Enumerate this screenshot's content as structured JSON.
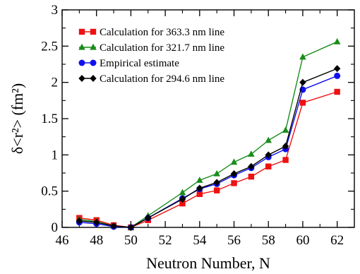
{
  "chart_data": {
    "type": "line",
    "xlabel": "Neutron Number, N",
    "ylabel": "δ<r²> (fm²)",
    "xlim": [
      46,
      63
    ],
    "ylim": [
      0,
      3
    ],
    "xticks": [
      46,
      48,
      50,
      52,
      54,
      56,
      58,
      60,
      62
    ],
    "yticks": [
      0,
      0.5,
      1,
      1.5,
      2,
      2.5,
      3
    ],
    "grid": false,
    "legend_position": "top-left",
    "series": [
      {
        "name": "Calculation for 363.3 nm line",
        "color": "#ee1111",
        "marker": "square",
        "x": [
          47,
          48,
          49,
          50,
          51,
          53,
          54,
          55,
          56,
          57,
          58,
          59,
          60,
          62
        ],
        "y": [
          0.13,
          0.1,
          0.03,
          0.0,
          0.1,
          0.33,
          0.46,
          0.51,
          0.61,
          0.7,
          0.84,
          0.93,
          1.72,
          1.87
        ]
      },
      {
        "name": "Calculation for 321.7 nm line",
        "color": "#1a8c1a",
        "marker": "triangle",
        "x": [
          47,
          48,
          49,
          50,
          51,
          53,
          54,
          55,
          56,
          57,
          58,
          59,
          60,
          62
        ],
        "y": [
          0.11,
          0.08,
          0.02,
          0.0,
          0.16,
          0.48,
          0.65,
          0.74,
          0.9,
          1.01,
          1.2,
          1.34,
          2.35,
          2.56
        ]
      },
      {
        "name": "Empirical estimate",
        "color": "#1010ee",
        "marker": "circle",
        "x": [
          47,
          48,
          49,
          50,
          51,
          53,
          54,
          55,
          56,
          57,
          58,
          59,
          60,
          62
        ],
        "y": [
          0.07,
          0.05,
          0.01,
          0.0,
          0.13,
          0.4,
          0.53,
          0.6,
          0.72,
          0.82,
          0.97,
          1.08,
          1.9,
          2.09
        ]
      },
      {
        "name": "Calculation for 294.6 nm line",
        "color": "#000000",
        "marker": "diamond",
        "x": [
          47,
          48,
          49,
          50,
          51,
          53,
          54,
          55,
          56,
          57,
          58,
          59,
          60,
          62
        ],
        "y": [
          0.09,
          0.07,
          0.02,
          0.0,
          0.13,
          0.39,
          0.54,
          0.62,
          0.74,
          0.84,
          1.0,
          1.12,
          2.0,
          2.19
        ]
      }
    ]
  }
}
